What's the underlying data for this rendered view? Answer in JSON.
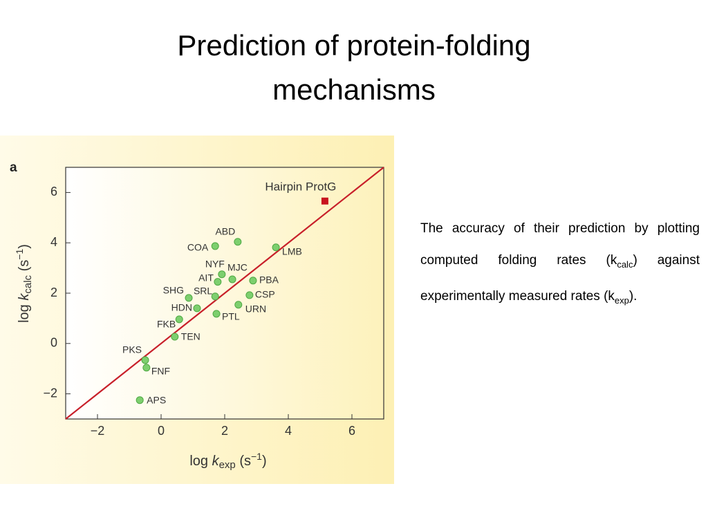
{
  "slide": {
    "title_lines": [
      "Prediction of protein-folding",
      "mechanisms"
    ],
    "text": {
      "a": "The accuracy of their prediction by plotting computed folding rates (k",
      "a_sub": "calc",
      "b": ") against experimentally measured rates (k",
      "b_sub": "exp",
      "c": ")."
    }
  },
  "chart_data": {
    "type": "scatter",
    "panel_label": "a",
    "x_label": {
      "pre": "log ",
      "k": "k",
      "sub": "exp",
      "post": " (s",
      "sup": "−1",
      "end": ")"
    },
    "y_label": {
      "pre": "log ",
      "k": "k",
      "sub": "calc",
      "post": " (s",
      "sup": "−1",
      "end": ")"
    },
    "xlim": [
      -3,
      7
    ],
    "ylim": [
      -3,
      7
    ],
    "xticks": [
      {
        "value": -2,
        "label": "−2"
      },
      0,
      2,
      4,
      6
    ],
    "yticks": [
      {
        "value": -2,
        "label": "−2"
      },
      0,
      2,
      4,
      6
    ],
    "diagonal_color": "#c8202a",
    "points": {
      "color": "#7dcf6e",
      "labels": [
        "ABD",
        "COA",
        "LMB",
        "NYF",
        "MJC",
        "AIT",
        "PBA",
        "SHG",
        "SRL",
        "CSP",
        "HDN",
        "URN",
        "PTL",
        "FKB",
        "TEN",
        "PKS",
        "FNF",
        "APS"
      ],
      "x": [
        2.41,
        1.7,
        3.61,
        1.91,
        2.24,
        1.78,
        2.89,
        0.87,
        1.7,
        2.78,
        1.13,
        2.43,
        1.74,
        0.57,
        0.43,
        -0.5,
        -0.46,
        -0.67
      ],
      "y": [
        4.04,
        3.87,
        3.82,
        2.75,
        2.55,
        2.45,
        2.5,
        1.81,
        1.87,
        1.92,
        1.4,
        1.54,
        1.18,
        0.96,
        0.27,
        -0.66,
        -0.96,
        -2.25
      ]
    },
    "highlight": {
      "label": "Hairpin ProtG",
      "x": 5.15,
      "y": 5.66,
      "color": "#c8141e"
    }
  }
}
